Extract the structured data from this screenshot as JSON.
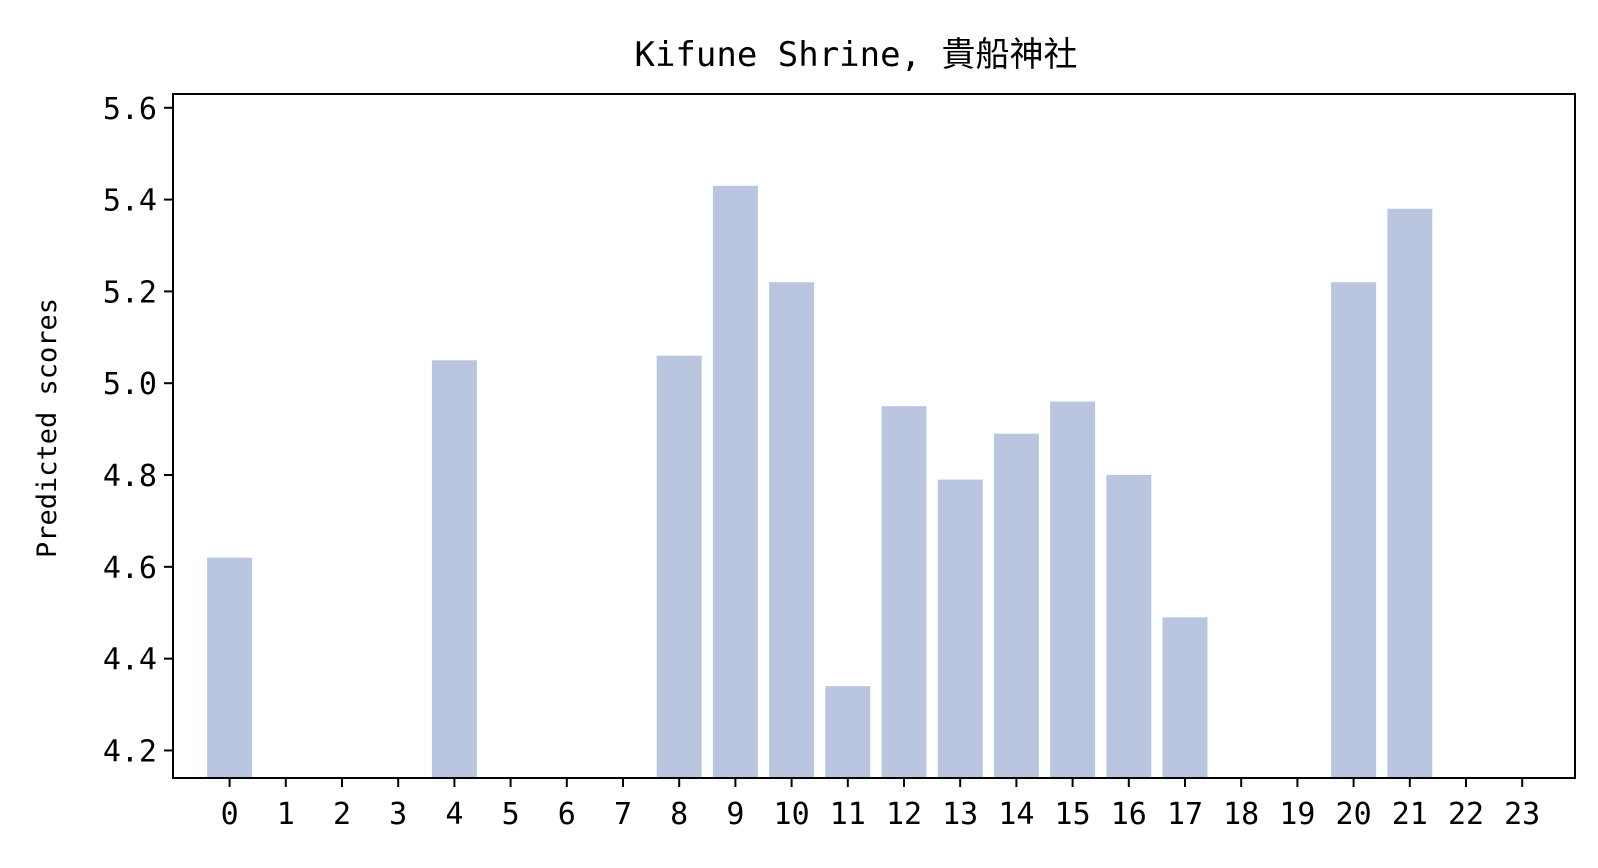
{
  "chart_data": {
    "type": "bar",
    "title": "Kifune Shrine, 貴船神社",
    "xlabel": "",
    "ylabel": "Predicted scores",
    "categories": [
      "0",
      "1",
      "2",
      "3",
      "4",
      "5",
      "6",
      "7",
      "8",
      "9",
      "10",
      "11",
      "12",
      "13",
      "14",
      "15",
      "16",
      "17",
      "18",
      "19",
      "20",
      "21",
      "22",
      "23"
    ],
    "values": [
      4.62,
      null,
      null,
      null,
      5.05,
      null,
      null,
      null,
      5.06,
      5.43,
      5.22,
      4.34,
      4.95,
      4.79,
      4.89,
      4.96,
      4.8,
      4.49,
      null,
      null,
      5.22,
      5.38,
      null,
      null
    ],
    "yticks": [
      "4.2",
      "4.4",
      "4.6",
      "4.8",
      "5.0",
      "5.2",
      "5.4",
      "5.6"
    ],
    "ylim": [
      4.14,
      5.63
    ],
    "bar_color": "#bac6e0",
    "grid": false
  }
}
